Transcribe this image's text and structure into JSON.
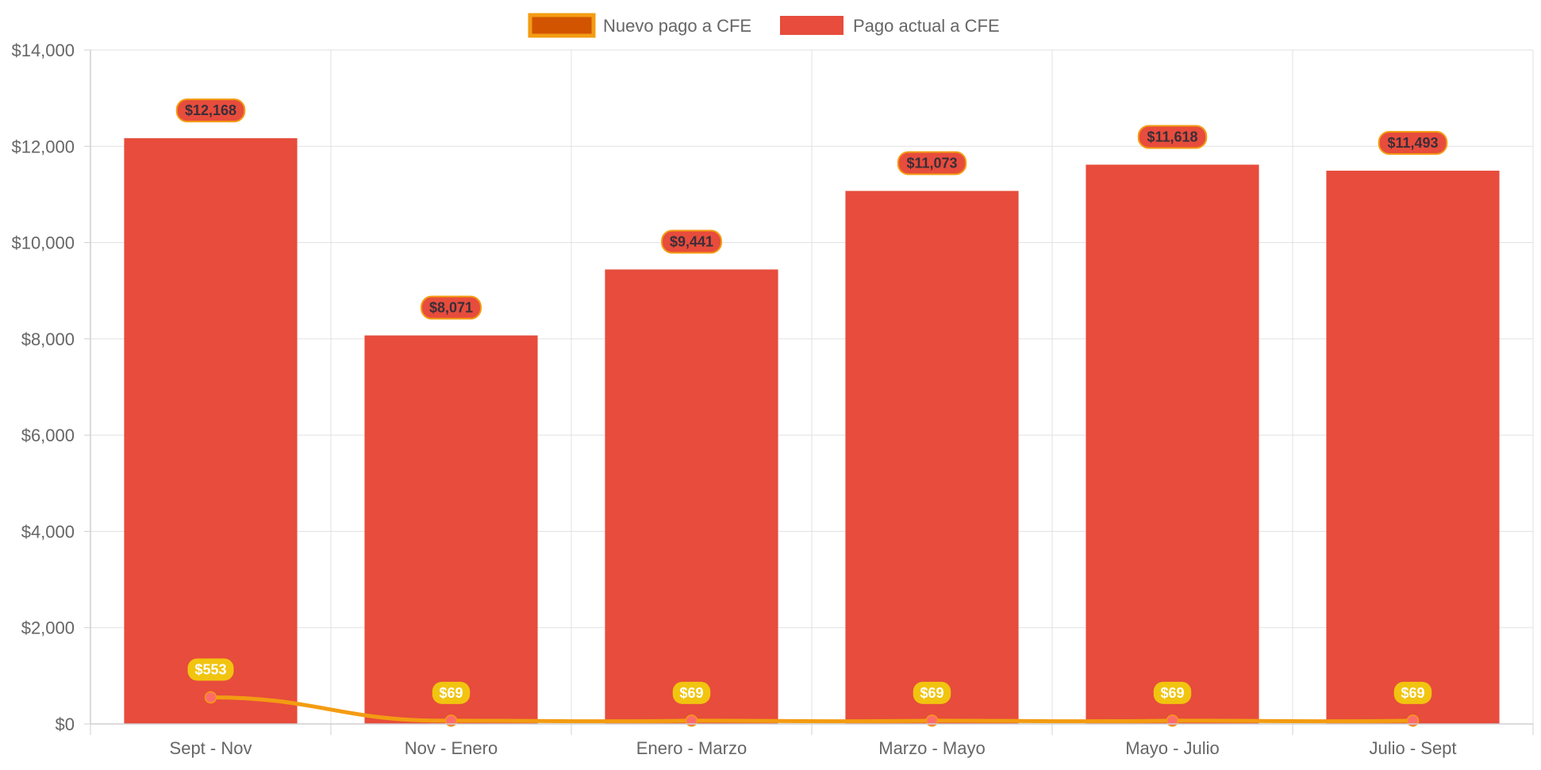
{
  "chart_data": {
    "type": "bar",
    "categories": [
      "Sept - Nov",
      "Nov - Enero",
      "Enero - Marzo",
      "Marzo - Mayo",
      "Mayo - Julio",
      "Julio - Sept"
    ],
    "series": [
      {
        "name": "Nuevo pago a CFE",
        "type": "line",
        "values": [
          553,
          69,
          69,
          69,
          69,
          69
        ],
        "labels": [
          "$553",
          "$69",
          "$69",
          "$69",
          "$69",
          "$69"
        ],
        "color": "#f39c12",
        "legend_fill": "#d35400",
        "point_color": "#ff6b6b",
        "label_bg": "#f1c40f"
      },
      {
        "name": "Pago actual a CFE",
        "type": "bar",
        "values": [
          12168,
          8071,
          9441,
          11073,
          11618,
          11493
        ],
        "labels": [
          "$12,168",
          "$8,071",
          "$9,441",
          "$11,073",
          "$11,618",
          "$11,493"
        ],
        "color": "#e74c3c",
        "label_border": "#f39c12"
      }
    ],
    "ylim": [
      0,
      14000
    ],
    "yticks": [
      0,
      2000,
      4000,
      6000,
      8000,
      10000,
      12000,
      14000
    ],
    "ytick_labels": [
      "$0",
      "$2,000",
      "$4,000",
      "$6,000",
      "$8,000",
      "$10,000",
      "$12,000",
      "$14,000"
    ],
    "grid": true,
    "legend": "top-center"
  }
}
